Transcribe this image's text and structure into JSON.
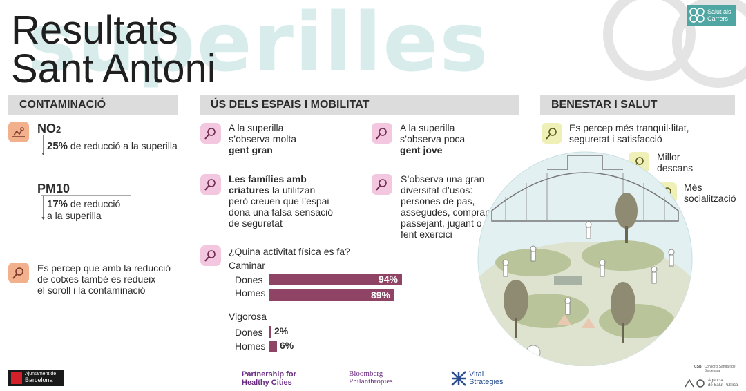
{
  "header": {
    "watermark": "superilles",
    "title_line1": "Resultats",
    "title_line2": "Sant Antoni",
    "badge_label": "Salut als Carrers"
  },
  "contaminacio": {
    "heading": "CONTAMINACIÓ",
    "no2_label": "NO",
    "no2_sub": "2",
    "no2_pct": "25%",
    "no2_text": "de reducció a la superilla",
    "pm10_label": "PM10",
    "pm10_pct": "17%",
    "pm10_text1": "de reducció",
    "pm10_text2": "a la superilla",
    "noise_line1": "Es percep que amb la reducció",
    "noise_line2": "de cotxes també es redueix",
    "noise_line3": "el soroll i la contaminació"
  },
  "us": {
    "heading": "ÚS DELS ESPAIS I MOBILITAT",
    "gran_line1": "A la superilla",
    "gran_line2": "s’observa molta",
    "gran_line3": "gent gran",
    "jove_line1": "A la superilla",
    "jove_line2": "s’observa poca",
    "jove_line3": "gent jove",
    "fam_bold": "Les famílies amb",
    "fam_bold2": "criatures",
    "fam_rest1": " la utilitzan",
    "fam_line3": "però creuen que l’espai",
    "fam_line4": "dona una falsa sensació",
    "fam_line5": "de seguretat",
    "div_line1": "S’observa una gran",
    "div_line2": "diversitat d’usos:",
    "div_line3": "persones de pas,",
    "div_line4": "assegudes, comprant,",
    "div_line5": "passejant, jugant o",
    "div_line6": "fent exercici",
    "question": "¿Quina activitat física es fa?"
  },
  "chart_data": {
    "type": "bar",
    "title": "¿Quina activitat física es fa?",
    "groups": [
      {
        "name": "Caminar",
        "categories": [
          "Dones",
          "Homes"
        ],
        "values": [
          94,
          89
        ],
        "labels": [
          "94%",
          "89%"
        ]
      },
      {
        "name": "Vigorosa",
        "categories": [
          "Dones",
          "Homes"
        ],
        "values": [
          2,
          6
        ],
        "labels": [
          "2%",
          "6%"
        ]
      }
    ],
    "unit": "%",
    "xlim": [
      0,
      100
    ],
    "color": "#8f4365"
  },
  "benestar": {
    "heading": "BENESTAR I SALUT",
    "tranq_line1": "Es percep més tranquil·litat,",
    "tranq_line2": "seguretat i satisfacció",
    "descans_line1": "Millor",
    "descans_line2": "descans",
    "social_line1": "Més",
    "social_line2": "socialització"
  },
  "footer": {
    "ajuntament_line1": "Ajuntament de",
    "ajuntament_line2": "Barcelona",
    "partnership_line1": "Partnership for",
    "partnership_line2": "Healthy Cities",
    "bloomberg_line1": "Bloomberg",
    "bloomberg_line2": "Philanthropies",
    "vital_line1": "Vital",
    "vital_line2": "Strategies",
    "csb_label": "CSB",
    "csb_line": "Consorci Sanitari de Barcelona",
    "aspb_line1": "Agència",
    "aspb_line2": "de Salut Pública"
  },
  "colors": {
    "bar": "#8f4365",
    "orange_icon": "#f3b08c",
    "pink_icon": "#f3c7df",
    "yellow_icon": "#eef0b8",
    "section_gray": "#dcdcdc",
    "teal": "#4fa6a2"
  }
}
